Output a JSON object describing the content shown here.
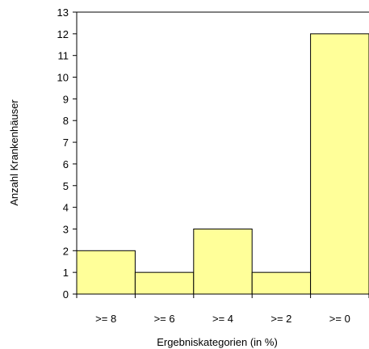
{
  "chart_data": {
    "type": "bar",
    "title": "",
    "xlabel": "Ergebniskategorien (in %)",
    "ylabel": "Anzahl Krankenhäuser",
    "categories": [
      ">= 8",
      ">= 6",
      ">= 4",
      ">= 2",
      ">= 0"
    ],
    "values": [
      2,
      1,
      3,
      1,
      12
    ],
    "ylim": [
      0,
      13
    ],
    "yticks": [
      "0",
      "1",
      "2",
      "3",
      "4",
      "5",
      "6",
      "7",
      "8",
      "9",
      "10",
      "11",
      "12",
      "13"
    ],
    "grid": false,
    "legend": "none",
    "bar_color": "#ffff99",
    "bar_edge_color": "#000000"
  }
}
